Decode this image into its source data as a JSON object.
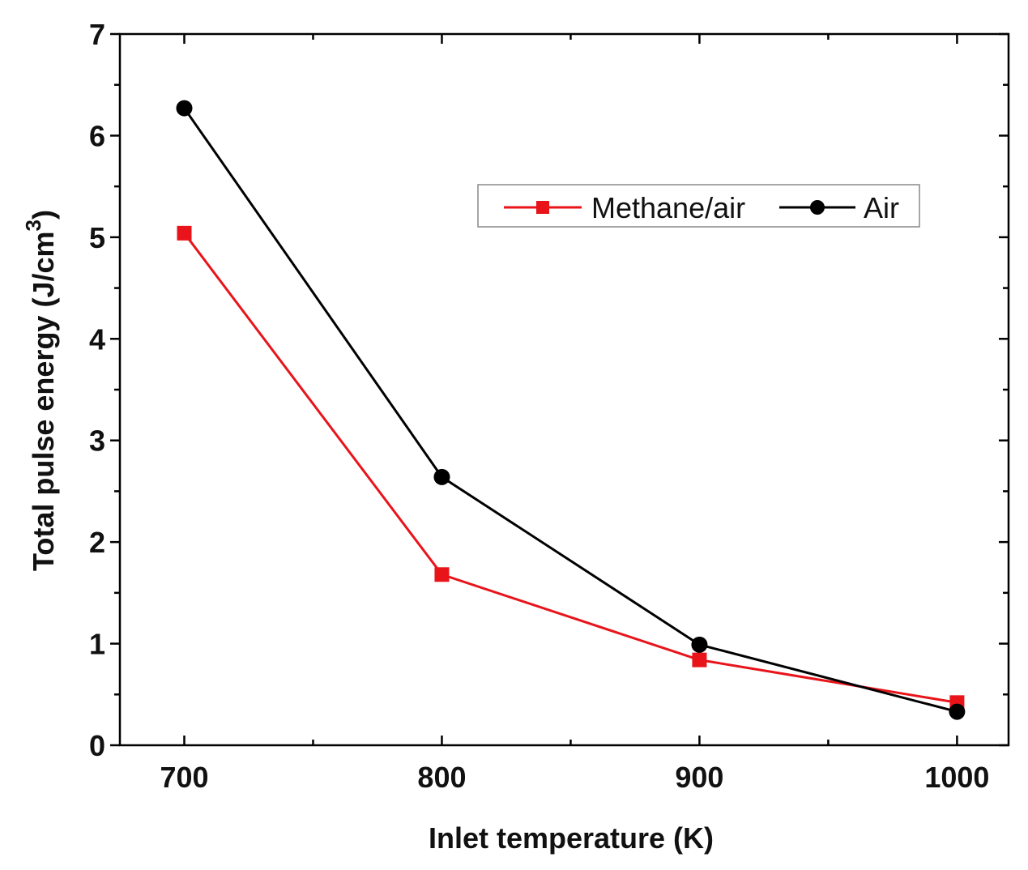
{
  "chart_data": {
    "type": "line",
    "title": "",
    "xlabel": "Inlet temperature (K)",
    "ylabel_main": "Total pulse energy (J/cm",
    "ylabel_sup": "3",
    "ylabel_close": ")",
    "x": [
      700,
      800,
      900,
      1000
    ],
    "xlim": [
      675,
      1020
    ],
    "ylim": [
      0,
      7
    ],
    "x_ticks": [
      700,
      800,
      900,
      1000
    ],
    "x_tick_labels": [
      "700",
      "800",
      "900",
      "1000"
    ],
    "x_minor_ticks": [
      750,
      850,
      950
    ],
    "y_ticks": [
      0,
      1,
      2,
      3,
      4,
      5,
      6,
      7
    ],
    "y_tick_labels": [
      "0",
      "1",
      "2",
      "3",
      "4",
      "5",
      "6",
      "7"
    ],
    "y_minor_ticks": [
      0.5,
      1.5,
      2.5,
      3.5,
      4.5,
      5.5,
      6.5
    ],
    "legend_position": "upper-right",
    "series": [
      {
        "name": "Methane/air",
        "color": "#e8141a",
        "marker": "square",
        "values": [
          5.04,
          1.68,
          0.84,
          0.42
        ]
      },
      {
        "name": "Air",
        "color": "#000000",
        "marker": "circle",
        "values": [
          6.27,
          2.64,
          0.99,
          0.33
        ]
      }
    ]
  }
}
